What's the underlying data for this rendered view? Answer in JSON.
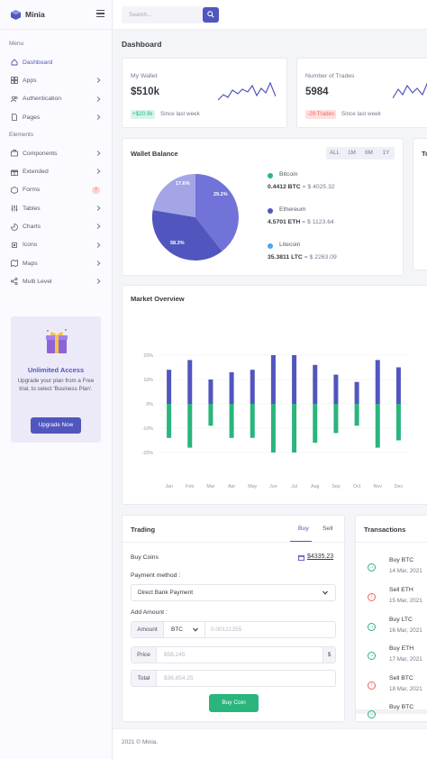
{
  "app": {
    "name": "Minia"
  },
  "search": {
    "placeholder": "Search..."
  },
  "sidebar": {
    "section_menu": "Menu",
    "section_elements": "Elements",
    "menu_items": [
      {
        "label": "Dashboard",
        "icon": "home-icon",
        "active": true
      },
      {
        "label": "Apps",
        "icon": "grid-icon"
      },
      {
        "label": "Authentication",
        "icon": "users-icon"
      },
      {
        "label": "Pages",
        "icon": "file-icon"
      }
    ],
    "element_items": [
      {
        "label": "Components",
        "icon": "briefcase-icon"
      },
      {
        "label": "Extended",
        "icon": "gift-icon"
      },
      {
        "label": "Forms",
        "icon": "box-icon",
        "badge": "7"
      },
      {
        "label": "Tables",
        "icon": "sliders-icon"
      },
      {
        "label": "Charts",
        "icon": "pie-chart-icon"
      },
      {
        "label": "Icons",
        "icon": "cpu-icon"
      },
      {
        "label": "Maps",
        "icon": "map-icon"
      },
      {
        "label": "Multi Level",
        "icon": "share-icon"
      }
    ],
    "upgrade": {
      "title": "Unlimited Access",
      "text": "Upgrade your plan from a Free trial, to select 'Business Plan'.",
      "button": "Upgrade Now"
    }
  },
  "page": {
    "title": "Dashboard"
  },
  "stats": [
    {
      "label": "My Wallet",
      "value": "$510k",
      "change": "+$20.9k",
      "change_type": "up",
      "since": "Since last week"
    },
    {
      "label": "Number of Trades",
      "value": "5984",
      "change": "-29 Trades",
      "change_type": "down",
      "since": "Since last week"
    }
  ],
  "wallet": {
    "title": "Wallet Balance",
    "periods": [
      "ALL",
      "1M",
      "6M",
      "1Y"
    ],
    "coins": [
      {
        "name": "Bitcoin",
        "amount": "0.4412 BTC",
        "equals": "= $ 4025.32",
        "color": "#2ab57d"
      },
      {
        "name": "Ethereum",
        "amount": "4.5701 ETH",
        "equals": "= $ 1123.64",
        "color": "#5156be"
      },
      {
        "name": "Litecoin",
        "amount": "35.3811 LTC",
        "equals": "= $ 2263.09",
        "color": "#4ba6ef"
      }
    ]
  },
  "side_card_title_clip": "To",
  "market": {
    "title": "Market Overview"
  },
  "chart_data": {
    "type": "bar",
    "categories": [
      "Jan",
      "Feb",
      "Mar",
      "Apr",
      "May",
      "Jun",
      "Jul",
      "Aug",
      "Sep",
      "Oct",
      "Nov",
      "Dec"
    ],
    "series": [
      {
        "values": [
          14,
          18,
          10,
          13,
          14,
          20,
          20,
          16,
          12,
          9,
          18,
          15
        ],
        "color": "#5156be"
      },
      {
        "values": [
          -14,
          -18,
          -9,
          -14,
          -14,
          -20,
          -20,
          -16,
          -12,
          -9,
          -18,
          -15
        ],
        "color": "#2ab57d"
      }
    ],
    "yticks": [
      "20%",
      "10%",
      "0%",
      "-10%",
      "-20%"
    ],
    "ylim": [
      -30,
      30
    ],
    "grid": true
  },
  "trading": {
    "title": "Trading",
    "tabs": [
      "Buy",
      "Sell"
    ],
    "buy_label": "Buy Coins",
    "balance": "$4335.23",
    "payment_label": "Payment method :",
    "payment_value": "Direct Bank Payment",
    "amount_label": "Add Amount :",
    "amount_addon": "Amount",
    "currency": "BTC",
    "amount_value": "0.00121255",
    "price_addon": "Price",
    "price_value": "$58,245",
    "price_suffix": "$",
    "total_addon": "Total",
    "total_value": "$36,854.25",
    "button": "Buy Coin"
  },
  "transactions": {
    "title": "Transactions",
    "items": [
      {
        "title": "Buy BTC",
        "date": "14 Mar, 2021",
        "type": "in"
      },
      {
        "title": "Sell ETH",
        "date": "15 Mar, 2021",
        "type": "out"
      },
      {
        "title": "Buy LTC",
        "date": "16 Mar, 2021",
        "type": "in"
      },
      {
        "title": "Buy ETH",
        "date": "17 Mar, 2021",
        "type": "in"
      },
      {
        "title": "Sell BTC",
        "date": "18 Mar, 2021",
        "type": "out"
      },
      {
        "title": "Buy BTC",
        "date": "",
        "type": "in"
      }
    ]
  },
  "footer": {
    "text": "2021 © Minia."
  }
}
